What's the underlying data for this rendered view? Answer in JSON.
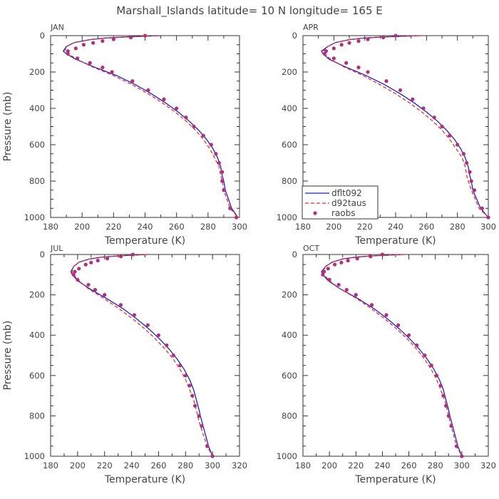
{
  "title": "Marshall_Islands  latitude= 10 N longitude= 165 E",
  "legend": {
    "items": [
      {
        "label": "dflt092",
        "style": "solid",
        "color": "#1f1fc8"
      },
      {
        "label": "d92taus",
        "style": "dashed",
        "color": "#e8302a"
      },
      {
        "label": "raobs",
        "style": "dot",
        "color": "#b0307a"
      }
    ]
  },
  "colors": {
    "dflt092": "#1f1fc8",
    "d92taus": "#e8302a",
    "raobs": "#b0307a",
    "axis": "#333333",
    "text": "#444444"
  },
  "chart_data": [
    {
      "type": "line",
      "panel_label": "JAN",
      "xlabel": "Temperature (K)",
      "ylabel": "Pressure (mb)",
      "xlim": [
        180,
        300
      ],
      "ylim": [
        1000,
        0
      ],
      "xticks": [
        "180",
        "200",
        "220",
        "240",
        "260",
        "280",
        "300"
      ],
      "yticks": [
        "0",
        "200",
        "400",
        "600",
        "800",
        "1000"
      ],
      "series": [
        {
          "name": "dflt092",
          "x": [
            250,
            240,
            228,
            215,
            205,
            195,
            190,
            188,
            190,
            196,
            207,
            222,
            234,
            244,
            253,
            261,
            268,
            274,
            279,
            283,
            286,
            288,
            289,
            290,
            291,
            295,
            299
          ],
          "y": [
            0,
            3,
            7,
            13,
            22,
            38,
            60,
            85,
            100,
            130,
            170,
            220,
            270,
            320,
            370,
            420,
            470,
            520,
            570,
            620,
            670,
            720,
            770,
            800,
            850,
            950,
            1000
          ]
        },
        {
          "name": "d92taus",
          "x": [
            250,
            240,
            228,
            215,
            205,
            195,
            190,
            189,
            191,
            197,
            206,
            220,
            232,
            242,
            251,
            259,
            266,
            272,
            277,
            281,
            284,
            287,
            288,
            289,
            290,
            294,
            299
          ],
          "y": [
            0,
            3,
            7,
            13,
            22,
            38,
            60,
            85,
            100,
            130,
            170,
            220,
            270,
            320,
            370,
            420,
            470,
            520,
            570,
            620,
            670,
            720,
            770,
            800,
            850,
            950,
            1000
          ]
        },
        {
          "name": "raobs",
          "x": [
            240,
            231,
            220,
            213,
            207,
            201,
            196,
            191,
            191,
            197,
            205,
            213,
            219,
            232,
            242,
            252,
            260,
            266,
            271,
            277,
            282,
            285,
            287,
            289,
            289,
            290,
            294,
            298
          ],
          "y": [
            0,
            10,
            20,
            30,
            40,
            50,
            70,
            85,
            100,
            125,
            150,
            175,
            200,
            250,
            300,
            350,
            400,
            450,
            500,
            550,
            600,
            650,
            700,
            750,
            800,
            850,
            950,
            1000
          ]
        }
      ]
    },
    {
      "type": "line",
      "panel_label": "APR",
      "xlabel": "Temperature (K)",
      "ylabel": "Pressure (mb)",
      "xlim": [
        180,
        300
      ],
      "ylim": [
        1000,
        0
      ],
      "xticks": [
        "180",
        "200",
        "220",
        "240",
        "260",
        "280",
        "300"
      ],
      "yticks": [
        "0",
        "200",
        "400",
        "600",
        "800",
        "1000"
      ],
      "series": [
        {
          "name": "dflt092",
          "x": [
            256,
            245,
            232,
            220,
            210,
            201,
            196,
            192,
            193,
            197,
            207,
            221,
            233,
            243,
            252,
            260,
            267,
            273,
            278,
            282,
            285,
            287,
            288,
            289,
            290,
            295,
            300
          ],
          "y": [
            0,
            3,
            7,
            13,
            22,
            38,
            60,
            85,
            100,
            130,
            170,
            220,
            270,
            320,
            370,
            420,
            470,
            520,
            570,
            620,
            670,
            720,
            770,
            800,
            850,
            950,
            1000
          ]
        },
        {
          "name": "d92taus",
          "x": [
            256,
            245,
            232,
            220,
            210,
            201,
            196,
            193,
            194,
            198,
            206,
            219,
            230,
            240,
            249,
            257,
            264,
            270,
            275,
            279,
            283,
            285,
            286,
            287,
            289,
            294,
            300
          ],
          "y": [
            0,
            3,
            7,
            13,
            22,
            38,
            60,
            85,
            100,
            130,
            170,
            220,
            270,
            320,
            370,
            420,
            470,
            520,
            570,
            620,
            670,
            720,
            770,
            800,
            850,
            950,
            1000
          ]
        },
        {
          "name": "raobs",
          "x": [
            240,
            232,
            222,
            216,
            210,
            205,
            200,
            195,
            194,
            200,
            208,
            216,
            222,
            234,
            243,
            251,
            258,
            265,
            270,
            275,
            280,
            284,
            286,
            288,
            289,
            291,
            296,
            300
          ],
          "y": [
            0,
            10,
            20,
            30,
            40,
            50,
            70,
            85,
            100,
            125,
            150,
            175,
            200,
            250,
            300,
            350,
            400,
            450,
            500,
            550,
            600,
            650,
            700,
            750,
            800,
            850,
            950,
            1000
          ]
        }
      ]
    },
    {
      "type": "line",
      "panel_label": "JUL",
      "xlabel": "Temperature (K)",
      "ylabel": "Pressure (mb)",
      "xlim": [
        180,
        320
      ],
      "ylim": [
        1000,
        0
      ],
      "xticks": [
        "180",
        "200",
        "220",
        "240",
        "260",
        "280",
        "300",
        "320"
      ],
      "yticks": [
        "0",
        "200",
        "400",
        "600",
        "800",
        "1000"
      ],
      "series": [
        {
          "name": "dflt092",
          "x": [
            252,
            242,
            230,
            218,
            209,
            201,
            197,
            195,
            196,
            200,
            209,
            222,
            234,
            244,
            253,
            261,
            268,
            274,
            279,
            283,
            286,
            288,
            290,
            291,
            293,
            297,
            300
          ],
          "y": [
            0,
            3,
            7,
            13,
            22,
            38,
            60,
            85,
            100,
            130,
            170,
            220,
            270,
            320,
            370,
            420,
            470,
            520,
            570,
            620,
            670,
            720,
            770,
            800,
            850,
            950,
            1000
          ]
        },
        {
          "name": "d92taus",
          "x": [
            252,
            242,
            230,
            218,
            209,
            201,
            197,
            196,
            197,
            201,
            208,
            220,
            231,
            241,
            250,
            258,
            265,
            271,
            276,
            280,
            283,
            286,
            288,
            289,
            291,
            296,
            300
          ],
          "y": [
            0,
            3,
            7,
            13,
            22,
            38,
            60,
            85,
            100,
            130,
            170,
            220,
            270,
            320,
            370,
            420,
            470,
            520,
            570,
            620,
            670,
            720,
            770,
            800,
            850,
            950,
            1000
          ]
        },
        {
          "name": "raobs",
          "x": [
            241,
            232,
            222,
            215,
            210,
            206,
            201,
            198,
            197,
            200,
            208,
            213,
            220,
            232,
            242,
            252,
            260,
            266,
            271,
            276,
            280,
            283,
            285,
            287,
            290,
            292,
            296,
            300
          ],
          "y": [
            0,
            10,
            20,
            30,
            40,
            50,
            70,
            85,
            100,
            125,
            150,
            175,
            200,
            250,
            300,
            350,
            400,
            450,
            500,
            550,
            600,
            650,
            700,
            750,
            800,
            850,
            950,
            1000
          ]
        }
      ]
    },
    {
      "type": "line",
      "panel_label": "OCT",
      "xlabel": "Temperature (K)",
      "ylabel": "Pressure (mb)",
      "xlim": [
        180,
        320
      ],
      "ylim": [
        1000,
        0
      ],
      "xticks": [
        "180",
        "200",
        "220",
        "240",
        "260",
        "280",
        "300",
        "320"
      ],
      "yticks": [
        "0",
        "200",
        "400",
        "600",
        "800",
        "1000"
      ],
      "series": [
        {
          "name": "dflt092",
          "x": [
            256,
            245,
            232,
            220,
            210,
            202,
            197,
            194,
            195,
            199,
            208,
            222,
            234,
            244,
            253,
            261,
            268,
            274,
            279,
            283,
            286,
            288,
            290,
            291,
            293,
            297,
            300
          ],
          "y": [
            0,
            3,
            7,
            13,
            22,
            38,
            60,
            85,
            100,
            130,
            170,
            220,
            270,
            320,
            370,
            420,
            470,
            520,
            570,
            620,
            670,
            720,
            770,
            800,
            850,
            950,
            1000
          ]
        },
        {
          "name": "d92taus",
          "x": [
            256,
            245,
            232,
            220,
            210,
            202,
            197,
            195,
            196,
            200,
            208,
            221,
            232,
            242,
            251,
            259,
            266,
            272,
            277,
            281,
            284,
            287,
            289,
            290,
            292,
            296,
            300
          ],
          "y": [
            0,
            3,
            7,
            13,
            22,
            38,
            60,
            85,
            100,
            130,
            170,
            220,
            270,
            320,
            370,
            420,
            470,
            520,
            570,
            620,
            670,
            720,
            770,
            800,
            850,
            950,
            1000
          ]
        },
        {
          "name": "raobs",
          "x": [
            240,
            231,
            221,
            214,
            209,
            204,
            199,
            196,
            195,
            200,
            207,
            213,
            220,
            232,
            243,
            252,
            260,
            266,
            272,
            277,
            281,
            284,
            286,
            288,
            290,
            292,
            296,
            300
          ],
          "y": [
            0,
            10,
            20,
            30,
            40,
            50,
            70,
            85,
            100,
            125,
            150,
            175,
            200,
            250,
            300,
            350,
            400,
            450,
            500,
            550,
            600,
            650,
            700,
            750,
            800,
            850,
            950,
            1000
          ]
        }
      ]
    }
  ]
}
